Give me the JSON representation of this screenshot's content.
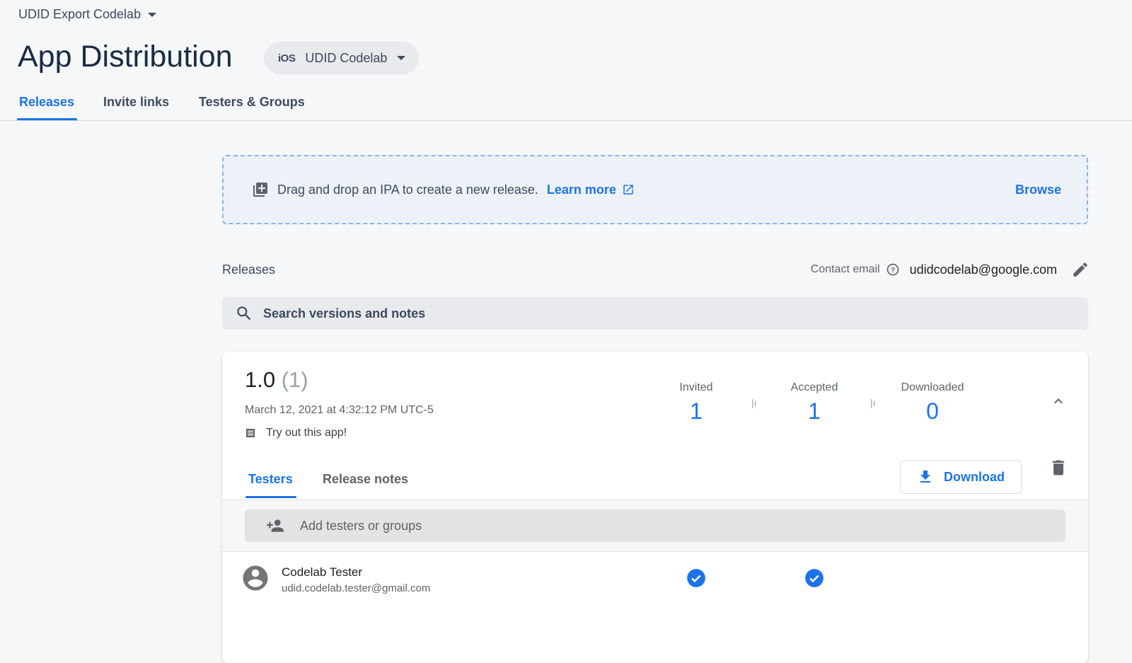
{
  "header": {
    "project": "UDID Export Codelab",
    "title": "App Distribution",
    "app_platform": "iOS",
    "app_platform_label": "iOS",
    "app_name": "UDID Codelab"
  },
  "tabs": [
    {
      "label": "Releases",
      "active": true
    },
    {
      "label": "Invite links"
    },
    {
      "label": "Testers & Groups"
    }
  ],
  "dropzone": {
    "text": "Drag and drop an IPA to create a new release.",
    "learn_more": "Learn more",
    "browse": "Browse"
  },
  "releases": {
    "label": "Releases",
    "contact_label": "Contact email",
    "contact_email": "udidcodelab@google.com",
    "search_placeholder": "Search versions and notes"
  },
  "release": {
    "version": "1.0",
    "build": "(1)",
    "date": "March 12, 2021 at 4:32:12 PM UTC-5",
    "notes": "Try out this app!",
    "stats": [
      {
        "label": "Invited",
        "value": "1"
      },
      {
        "label": "Accepted",
        "value": "1"
      },
      {
        "label": "Downloaded",
        "value": "0"
      }
    ],
    "tabs": [
      {
        "label": "Testers",
        "active": true
      },
      {
        "label": "Release notes"
      }
    ],
    "download_label": "Download",
    "add_placeholder": "Add testers or groups",
    "testers": [
      {
        "name": "Codelab Tester",
        "email": "udid.codelab.tester@gmail.com",
        "invited": true,
        "accepted": true,
        "downloaded": false
      }
    ]
  },
  "colors": {
    "accent": "#1a73e8",
    "title": "#1a2b45"
  }
}
